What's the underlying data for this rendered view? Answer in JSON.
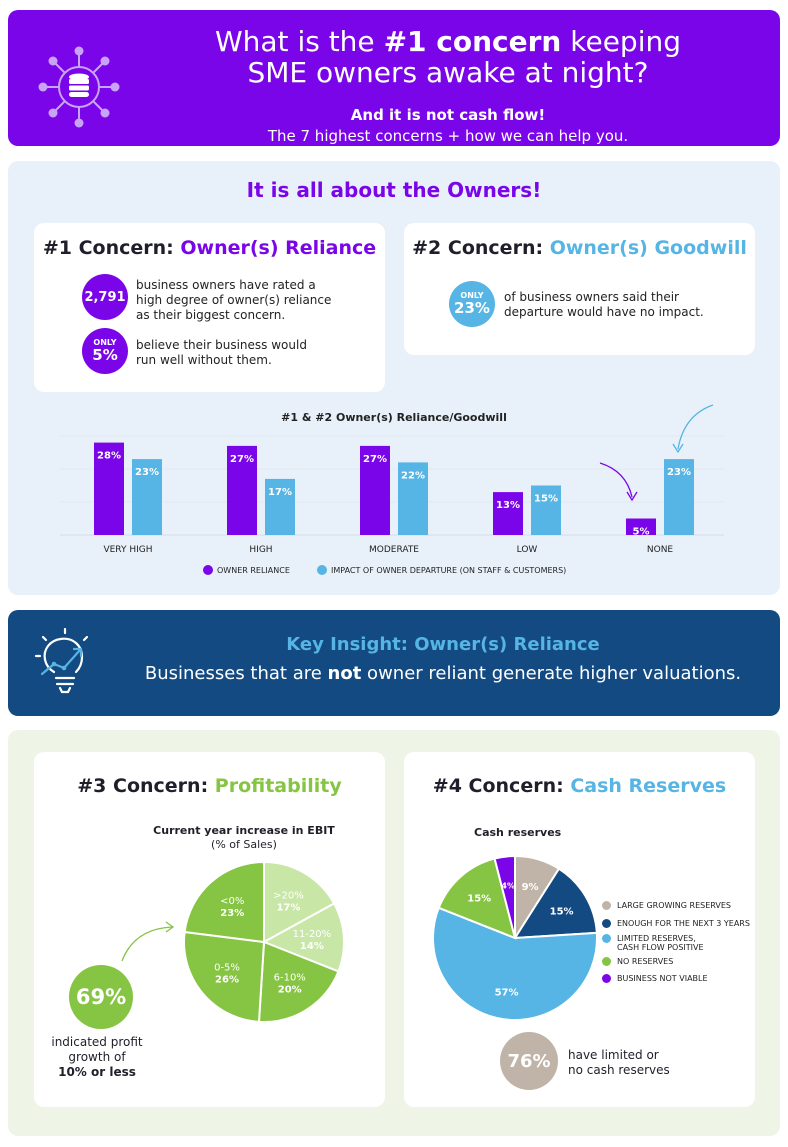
{
  "header": {
    "title_pre": "What is the ",
    "title_bold": "#1 concern",
    "title_post": " keeping",
    "title_line2": "SME owners awake at night?",
    "subtitle": "And it is not cash flow!",
    "tagline": "The 7 highest concerns + how we can help you."
  },
  "owners": {
    "title": "It is all about the Owners!",
    "concern1": {
      "prefix": "#1 Concern: ",
      "topic": "Owner(s) Reliance",
      "stat1_value": "2,791",
      "stat1_text_1": "business owners have rated a",
      "stat1_text_2": "high degree of owner(s) reliance",
      "stat1_text_3": "as their biggest concern.",
      "stat2_label": "ONLY",
      "stat2_value": "5%",
      "stat2_text_1": "believe their business would",
      "stat2_text_2": "run well without them."
    },
    "concern2": {
      "prefix": "#2 Concern: ",
      "topic": "Owner(s) Goodwill",
      "stat_label": "ONLY",
      "stat_value": "23%",
      "stat_text_1": "of business owners said their",
      "stat_text_2": "departure would have no impact."
    }
  },
  "chart_data": [
    {
      "type": "bar",
      "title": "#1 & #2 Owner(s) Reliance/Goodwill",
      "categories": [
        "VERY HIGH",
        "HIGH",
        "MODERATE",
        "LOW",
        "NONE"
      ],
      "series": [
        {
          "name": "OWNER RELIANCE",
          "color": "#7a05e8",
          "values": [
            28,
            27,
            27,
            13,
            5
          ],
          "labels": [
            "28%",
            "27%",
            "27%",
            "13%",
            "5%"
          ]
        },
        {
          "name": "IMPACT OF OWNER DEPARTURE (ON STAFF & CUSTOMERS)",
          "color": "#56b5e4",
          "values": [
            23,
            17,
            22,
            15,
            23
          ],
          "labels": [
            "23%",
            "17%",
            "22%",
            "15%",
            "23%"
          ]
        }
      ],
      "ylim": [
        0,
        30
      ]
    },
    {
      "type": "pie",
      "title": "Current year increase in EBIT",
      "subtitle": "(% of Sales)",
      "slices": [
        {
          "label": ">20%",
          "value": 17,
          "text": "17%",
          "color": "#c8e6a5"
        },
        {
          "label": "11-20%",
          "value": 14,
          "text": "14%",
          "color": "#c8e6a5"
        },
        {
          "label": "6-10%",
          "value": 20,
          "text": "20%",
          "color": "#86c443"
        },
        {
          "label": "0-5%",
          "value": 26,
          "text": "26%",
          "color": "#86c443"
        },
        {
          "label": "<0%",
          "value": 23,
          "text": "23%",
          "color": "#86c443"
        }
      ]
    },
    {
      "type": "pie",
      "title": "Cash reserves",
      "slices": [
        {
          "label": "LARGE GROWING RESERVES",
          "value": 9,
          "text": "9%",
          "color": "#c0b3a7"
        },
        {
          "label": "ENOUGH FOR THE NEXT 3 YEARS",
          "value": 15,
          "text": "15%",
          "color": "#134a82"
        },
        {
          "label": "LIMITED RESERVES, CASH FLOW POSITIVE",
          "value": 57,
          "text": "57%",
          "color": "#56b5e4"
        },
        {
          "label": "NO RESERVES",
          "value": 15,
          "text": "15%",
          "color": "#86c443"
        },
        {
          "label": "BUSINESS NOT VIABLE",
          "value": 4,
          "text": "4%",
          "color": "#7a05e8"
        }
      ]
    }
  ],
  "insight": {
    "title": "Key Insight: Owner(s) Reliance",
    "body_pre": "Businesses that are ",
    "body_bold": "not",
    "body_post": " owner reliant generate higher valuations."
  },
  "concern3": {
    "prefix": "#3 Concern: ",
    "topic": "Profitability",
    "stat_value": "69%",
    "stat_text_1": "indicated profit",
    "stat_text_2": "growth of",
    "stat_text_3": "10% or less"
  },
  "concern4": {
    "prefix": "#4 Concern: ",
    "topic": "Cash Reserves",
    "legend_3_line1": "LIMITED RESERVES,",
    "legend_3_line2": "CASH FLOW POSITIVE",
    "stat_value": "76%",
    "stat_text_1": "have limited or",
    "stat_text_2": "no cash reserves"
  },
  "colors": {
    "purple": "#7a05e8",
    "blue": "#56b5e4",
    "navy": "#134a82",
    "green": "#86c443",
    "light_green": "#c8e6a5",
    "taupe": "#c0b3a7"
  }
}
